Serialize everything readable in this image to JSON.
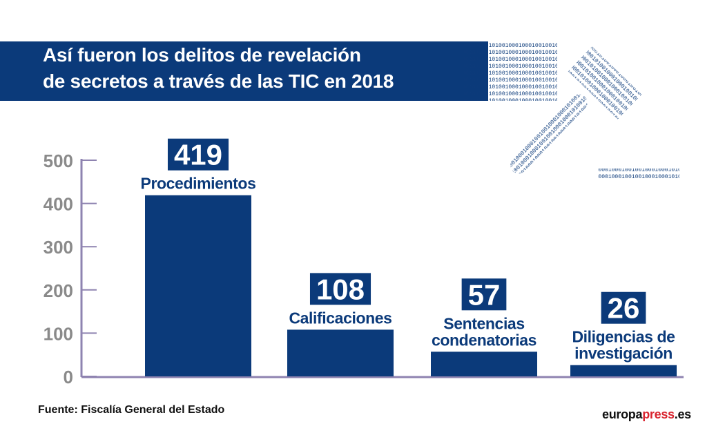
{
  "header": {
    "title_line1": "Así fueron los delitos de revelación",
    "title_line2": "de secretos a través de las TIC en 2018"
  },
  "footer": {
    "source": "Fuente: Fiscalía General del Estado",
    "brand_part1": "europa",
    "brand_part2": "press",
    "brand_part3": ".es"
  },
  "colors": {
    "bar": "#0b3a7a",
    "axis_text": "#8a8a8a",
    "axis_line": "#8e83b0",
    "brand_red": "#d9232e"
  },
  "decoration": {
    "icon": "gavel-icon",
    "binary_text": "01001000100010100100010001010"
  },
  "chart_data": {
    "type": "bar",
    "categories": [
      "Procedimientos",
      "Calificaciones",
      "Sentencias condenatorias",
      "Diligencias de investigación"
    ],
    "category_lines": [
      [
        "Procedimientos"
      ],
      [
        "Calificaciones"
      ],
      [
        "Sentencias",
        "condenatorias"
      ],
      [
        "Diligencias de",
        "investigación"
      ]
    ],
    "values": [
      419,
      108,
      57,
      26
    ],
    "data_labels": [
      "419",
      "108",
      "57",
      "26"
    ],
    "yticks": [
      0,
      100,
      200,
      300,
      400,
      500
    ],
    "ytick_labels": [
      "0",
      "100",
      "200",
      "300",
      "400",
      "500"
    ],
    "ylim": [
      0,
      500
    ],
    "grid": false,
    "legend": "none"
  }
}
